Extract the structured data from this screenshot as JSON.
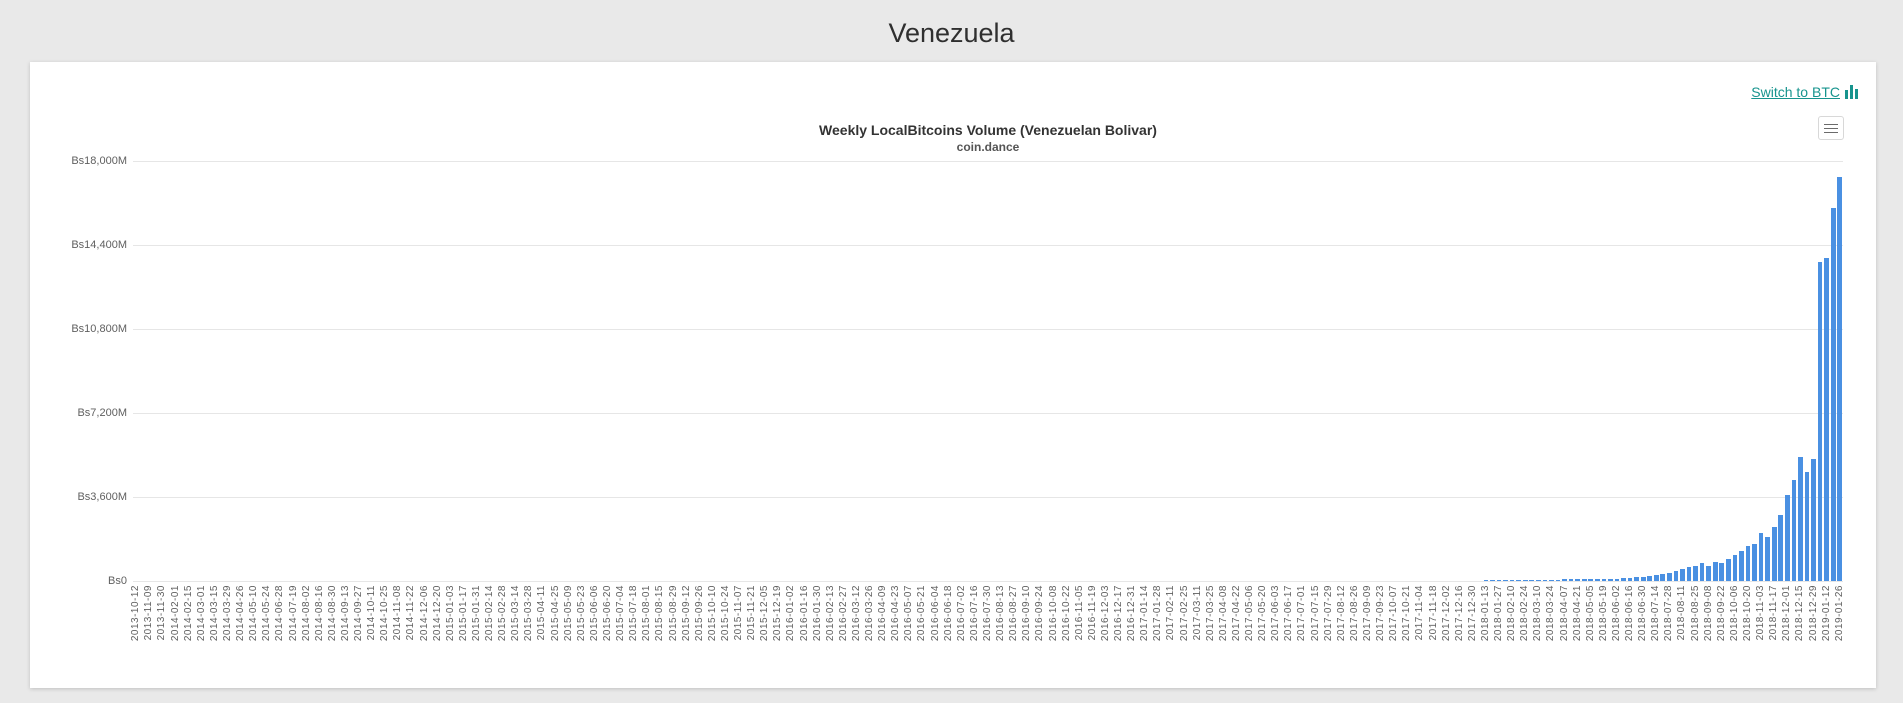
{
  "page": {
    "title": "Venezuela"
  },
  "card": {
    "switch_link": {
      "label": "Switch to BTC"
    },
    "icons": {
      "bar_chart_icon": "three-teal-bars",
      "context_menu_icon": "hamburger"
    }
  },
  "colors": {
    "page_background": "#e9e9e9",
    "card_background": "#ffffff",
    "accent_teal": "#17948e",
    "bar_blue": "#4a90e2",
    "gridline": "#e6e6e6",
    "axis_label": "#606060",
    "title_text": "#333333"
  },
  "chart_data": {
    "type": "bar",
    "title": "Weekly LocalBitcoins Volume (Venezuelan Bolivar)",
    "subtitle": "coin.dance",
    "xlabel": "",
    "ylabel": "",
    "ylim": [
      0,
      18000
    ],
    "unit": "millions of bolivars (Bs...M)",
    "grid": true,
    "legend": "none",
    "ytick_values": [
      18000,
      14400,
      10800,
      7200,
      3600,
      0
    ],
    "ytick_labels": [
      "Bs18,000M",
      "Bs14,400M",
      "Bs10,800M",
      "Bs7,200M",
      "Bs3,600M",
      "Bs0"
    ],
    "x_axis_note": "weekly bars; every second bar carries a rotated date label",
    "bars_per_label": 2,
    "tick_labels": [
      "2013-10-12",
      "2013-11-09",
      "2013-11-30",
      "2014-02-01",
      "2014-02-15",
      "2014-03-01",
      "2014-03-15",
      "2014-03-29",
      "2014-04-26",
      "2014-05-10",
      "2014-05-24",
      "2014-06-28",
      "2014-07-19",
      "2014-08-02",
      "2014-08-16",
      "2014-08-30",
      "2014-09-13",
      "2014-09-27",
      "2014-10-11",
      "2014-10-25",
      "2014-11-08",
      "2014-11-22",
      "2014-12-06",
      "2014-12-20",
      "2015-01-03",
      "2015-01-17",
      "2015-01-31",
      "2015-02-14",
      "2015-02-28",
      "2015-03-14",
      "2015-03-28",
      "2015-04-11",
      "2015-04-25",
      "2015-05-09",
      "2015-05-23",
      "2015-06-06",
      "2015-06-20",
      "2015-07-04",
      "2015-07-18",
      "2015-08-01",
      "2015-08-15",
      "2015-08-29",
      "2015-09-12",
      "2015-09-26",
      "2015-10-10",
      "2015-10-24",
      "2015-11-07",
      "2015-11-21",
      "2015-12-05",
      "2015-12-19",
      "2016-01-02",
      "2016-01-16",
      "2016-01-30",
      "2016-02-13",
      "2016-02-27",
      "2016-03-12",
      "2016-03-26",
      "2016-04-09",
      "2016-04-23",
      "2016-05-07",
      "2016-05-21",
      "2016-06-04",
      "2016-06-18",
      "2016-07-02",
      "2016-07-16",
      "2016-07-30",
      "2016-08-13",
      "2016-08-27",
      "2016-09-10",
      "2016-09-24",
      "2016-10-08",
      "2016-10-22",
      "2016-11-05",
      "2016-11-19",
      "2016-12-03",
      "2016-12-17",
      "2016-12-31",
      "2017-01-14",
      "2017-01-28",
      "2017-02-11",
      "2017-02-25",
      "2017-03-11",
      "2017-03-25",
      "2017-04-08",
      "2017-04-22",
      "2017-05-06",
      "2017-05-20",
      "2017-06-03",
      "2017-06-17",
      "2017-07-01",
      "2017-07-15",
      "2017-07-29",
      "2017-08-12",
      "2017-08-26",
      "2017-09-09",
      "2017-09-23",
      "2017-10-07",
      "2017-10-21",
      "2017-11-04",
      "2017-11-18",
      "2017-12-02",
      "2017-12-16",
      "2017-12-30",
      "2018-01-13",
      "2018-01-27",
      "2018-02-10",
      "2018-02-24",
      "2018-03-10",
      "2018-03-24",
      "2018-04-07",
      "2018-04-21",
      "2018-05-05",
      "2018-05-19",
      "2018-06-02",
      "2018-06-16",
      "2018-06-30",
      "2018-07-14",
      "2018-07-28",
      "2018-08-11",
      "2018-08-25",
      "2018-09-08",
      "2018-09-22",
      "2018-10-06",
      "2018-10-20",
      "2018-11-03",
      "2018-11-17",
      "2018-12-01",
      "2018-12-15",
      "2018-12-29",
      "2019-01-12",
      "2019-01-26"
    ],
    "bars": {
      "count": 261,
      "leading_zero_count": 206,
      "tail_values": [
        25,
        28,
        32,
        36,
        40,
        44,
        48,
        52,
        56,
        58,
        60,
        62,
        65,
        67,
        69,
        70,
        72,
        76,
        85,
        95,
        105,
        120,
        135,
        155,
        180,
        210,
        250,
        300,
        360,
        430,
        500,
        580,
        660,
        760,
        660,
        830,
        760,
        930,
        1110,
        1290,
        1500,
        1570,
        2040,
        1870,
        2330,
        2840,
        3690,
        4330,
        5330,
        4690,
        5210,
        13690,
        13830,
        15970,
        17330
      ]
    }
  }
}
